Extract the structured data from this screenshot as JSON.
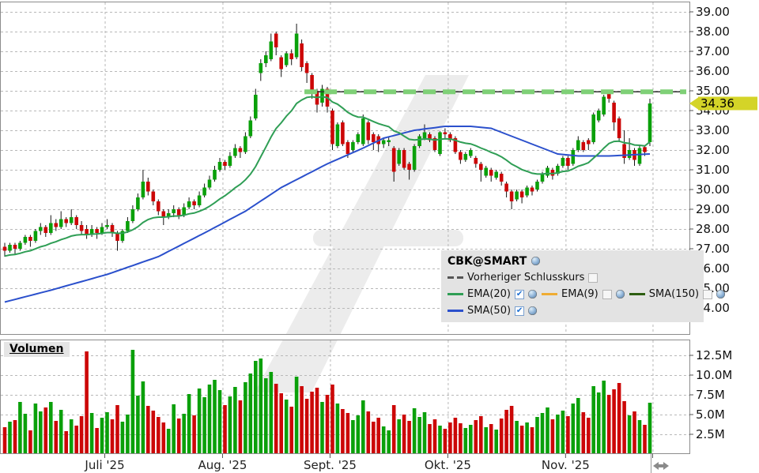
{
  "volume_label": "Volumen",
  "legend": {
    "title": "CBK@SMART",
    "items": [
      {
        "label": "Vorheriger Schlusskurs",
        "swatch": "dashed",
        "color": "#555555",
        "checked": false,
        "has_icon": false,
        "row": 2
      },
      {
        "label": "EMA(20)",
        "swatch": "line",
        "color": "#2f9e55",
        "checked": true,
        "has_icon": true,
        "row": 3
      },
      {
        "label": "EMA(9)",
        "swatch": "line",
        "color": "#efac33",
        "checked": false,
        "has_icon": true,
        "row": 3
      },
      {
        "label": "SMA(150)",
        "swatch": "line",
        "color": "#2d5e11",
        "checked": false,
        "has_icon": true,
        "row": 3
      },
      {
        "label": "SMA(50)",
        "swatch": "line",
        "color": "#2b50cc",
        "checked": true,
        "has_icon": true,
        "row": 4
      }
    ]
  },
  "price_axis": {
    "ticks": [
      {
        "label": "39.00",
        "value": 39
      },
      {
        "label": "38.00",
        "value": 38
      },
      {
        "label": "37.00",
        "value": 37
      },
      {
        "label": "36.00",
        "value": 36
      },
      {
        "label": "35.00",
        "value": 35
      },
      {
        "label": "34.00",
        "value": 34
      },
      {
        "label": "33.00",
        "value": 33
      },
      {
        "label": "32.00",
        "value": 32
      },
      {
        "label": "31.00",
        "value": 31
      },
      {
        "label": "30.00",
        "value": 30
      },
      {
        "label": "29.00",
        "value": 29
      },
      {
        "label": "28.00",
        "value": 28
      },
      {
        "label": "27.00",
        "value": 27
      },
      {
        "label": "26.00",
        "value": 26
      },
      {
        "label": "25.00",
        "value": 25
      },
      {
        "label": "24.00",
        "value": 24
      }
    ],
    "current_price": "34.36",
    "current_price_value": 34.36,
    "tag_color": "#d4d428"
  },
  "volume_axis": {
    "ticks": [
      {
        "label": "12.5M",
        "value": 12.5
      },
      {
        "label": "10.0M",
        "value": 10.0
      },
      {
        "label": "7.5M",
        "value": 7.5
      },
      {
        "label": "5.0M",
        "value": 5.0
      },
      {
        "label": "2.5M",
        "value": 2.5
      }
    ]
  },
  "x_axis": {
    "months": [
      {
        "label": "Juli '25",
        "start_index": 20
      },
      {
        "label": "Aug. '25",
        "start_index": 43
      },
      {
        "label": "Sept. '25",
        "start_index": 64
      },
      {
        "label": "Okt. '25",
        "start_index": 87
      },
      {
        "label": "Nov. '25",
        "start_index": 110
      },
      {
        "label": "",
        "start_index": 127
      }
    ]
  },
  "chart_data": {
    "type": "candlestick",
    "symbol": "CBK@SMART",
    "prev_close": 34.95,
    "prev_close_start_index": 59,
    "last_price": 34.36,
    "price_axis_range": [
      23.6,
      39.4
    ],
    "volume_axis_range": [
      0,
      14.3
    ],
    "grid": true,
    "colors": {
      "up": "#0aa00a",
      "down": "#cc0707",
      "ema20": "#2f9e55",
      "sma50": "#2b50cc",
      "prev_close": "#7fd077",
      "wick": "#151515"
    },
    "ema20": {
      "period": 20,
      "seed": 26.6
    },
    "sma50_anchor_points": [
      [
        0,
        24.3
      ],
      [
        9,
        24.9
      ],
      [
        20,
        25.7
      ],
      [
        30,
        26.6
      ],
      [
        39,
        27.8
      ],
      [
        47,
        28.9
      ],
      [
        54,
        30.1
      ],
      [
        63,
        31.3
      ],
      [
        70,
        32.1
      ],
      [
        74,
        32.6
      ],
      [
        80,
        33.0
      ],
      [
        86,
        33.2
      ],
      [
        91,
        33.2
      ],
      [
        95,
        33.1
      ],
      [
        100,
        32.6
      ],
      [
        105,
        32.1
      ],
      [
        108,
        31.8
      ],
      [
        112,
        31.7
      ],
      [
        118,
        31.7
      ],
      [
        126,
        31.8
      ]
    ],
    "candles_format": [
      "open",
      "high",
      "low",
      "close",
      "volume_millions"
    ],
    "candles": [
      [
        27.1,
        27.3,
        26.6,
        26.9,
        3.4
      ],
      [
        26.9,
        27.3,
        26.8,
        27.2,
        4.1
      ],
      [
        27.2,
        27.3,
        26.7,
        27.0,
        4.3
      ],
      [
        27.0,
        27.4,
        26.9,
        27.3,
        6.6
      ],
      [
        27.3,
        27.7,
        27.2,
        27.6,
        5.1
      ],
      [
        27.6,
        27.7,
        27.1,
        27.4,
        3.0
      ],
      [
        27.4,
        28.0,
        27.3,
        27.9,
        6.4
      ],
      [
        27.9,
        28.3,
        27.7,
        28.1,
        5.4
      ],
      [
        28.1,
        28.2,
        27.6,
        27.8,
        5.9
      ],
      [
        27.8,
        28.7,
        27.7,
        28.3,
        6.6
      ],
      [
        28.3,
        28.5,
        27.9,
        28.1,
        4.2
      ],
      [
        28.1,
        28.9,
        28.0,
        28.5,
        5.6
      ],
      [
        28.5,
        28.6,
        28.1,
        28.3,
        2.9
      ],
      [
        28.3,
        29.0,
        28.2,
        28.6,
        4.4
      ],
      [
        28.6,
        28.7,
        28.0,
        28.2,
        3.6
      ],
      [
        28.2,
        28.4,
        27.7,
        27.9,
        4.8
      ],
      [
        28.0,
        28.2,
        27.5,
        27.7,
        13.0
      ],
      [
        27.7,
        28.2,
        27.6,
        28.0,
        5.2
      ],
      [
        28.0,
        28.1,
        27.5,
        27.8,
        3.3
      ],
      [
        27.8,
        28.3,
        27.7,
        28.1,
        4.6
      ],
      [
        28.1,
        28.5,
        28.0,
        28.2,
        5.3
      ],
      [
        28.2,
        28.3,
        27.6,
        27.8,
        4.4
      ],
      [
        27.8,
        27.9,
        26.9,
        27.4,
        6.2
      ],
      [
        27.4,
        28.0,
        27.3,
        27.9,
        4.1
      ],
      [
        27.9,
        28.6,
        27.8,
        28.4,
        5.0
      ],
      [
        28.4,
        29.2,
        28.3,
        29.0,
        13.2
      ],
      [
        29.0,
        29.8,
        28.9,
        29.6,
        7.4
      ],
      [
        29.6,
        31.0,
        29.5,
        30.4,
        9.2
      ],
      [
        30.4,
        30.6,
        29.7,
        29.9,
        6.1
      ],
      [
        29.9,
        30.0,
        29.2,
        29.4,
        5.5
      ],
      [
        29.4,
        29.5,
        28.7,
        28.9,
        4.7
      ],
      [
        28.9,
        29.0,
        28.2,
        28.6,
        4.0
      ],
      [
        28.6,
        29.0,
        28.5,
        28.8,
        3.2
      ],
      [
        28.8,
        29.2,
        28.6,
        29.0,
        6.3
      ],
      [
        29.0,
        29.1,
        28.5,
        28.7,
        4.5
      ],
      [
        28.7,
        29.3,
        28.6,
        29.1,
        5.1
      ],
      [
        29.1,
        29.6,
        29.0,
        29.4,
        7.6
      ],
      [
        29.4,
        29.5,
        29.0,
        29.2,
        4.9
      ],
      [
        29.2,
        29.9,
        29.1,
        29.7,
        8.3
      ],
      [
        29.7,
        30.3,
        29.6,
        30.1,
        7.2
      ],
      [
        30.1,
        30.7,
        30.0,
        30.5,
        8.8
      ],
      [
        30.5,
        31.2,
        30.4,
        31.0,
        9.4
      ],
      [
        31.0,
        31.6,
        30.9,
        31.4,
        8.1
      ],
      [
        31.4,
        31.5,
        31.0,
        31.2,
        6.2
      ],
      [
        31.2,
        31.9,
        31.1,
        31.7,
        7.3
      ],
      [
        31.7,
        32.3,
        31.6,
        32.1,
        8.5
      ],
      [
        32.1,
        32.2,
        31.6,
        31.9,
        6.8
      ],
      [
        31.9,
        32.9,
        31.8,
        32.7,
        9.1
      ],
      [
        32.7,
        33.7,
        32.6,
        33.5,
        10.2
      ],
      [
        33.6,
        35.1,
        33.5,
        34.8,
        11.8
      ],
      [
        35.9,
        36.6,
        35.5,
        36.4,
        12.1
      ],
      [
        36.4,
        37.0,
        36.2,
        36.8,
        9.6
      ],
      [
        36.6,
        37.9,
        36.5,
        37.5,
        10.4
      ],
      [
        37.9,
        38.0,
        36.8,
        37.2,
        8.9
      ],
      [
        36.7,
        36.8,
        35.7,
        36.1,
        7.7
      ],
      [
        36.3,
        37.0,
        36.2,
        36.9,
        6.9
      ],
      [
        36.9,
        37.1,
        36.3,
        36.6,
        6.0
      ],
      [
        36.7,
        38.4,
        36.6,
        37.9,
        9.8
      ],
      [
        37.4,
        37.6,
        36.0,
        36.2,
        8.6
      ],
      [
        36.4,
        36.5,
        35.4,
        35.9,
        7.0
      ],
      [
        35.8,
        35.9,
        34.6,
        35.0,
        7.9
      ],
      [
        35.0,
        35.1,
        33.9,
        34.3,
        8.4
      ],
      [
        34.4,
        35.3,
        34.2,
        35.1,
        6.6
      ],
      [
        35.1,
        35.2,
        33.9,
        34.2,
        7.5
      ],
      [
        34.0,
        34.1,
        32.0,
        32.3,
        8.8
      ],
      [
        32.2,
        33.4,
        32.1,
        33.3,
        6.4
      ],
      [
        33.4,
        33.5,
        32.2,
        32.3,
        5.7
      ],
      [
        32.4,
        32.5,
        31.6,
        31.8,
        5.2
      ],
      [
        32.0,
        32.5,
        31.9,
        32.4,
        4.3
      ],
      [
        32.4,
        32.9,
        32.3,
        32.8,
        4.9
      ],
      [
        32.3,
        33.8,
        32.2,
        33.6,
        6.8
      ],
      [
        33.4,
        33.5,
        32.3,
        32.5,
        5.4
      ],
      [
        32.8,
        32.9,
        32.0,
        32.4,
        4.1
      ],
      [
        32.7,
        32.8,
        31.9,
        32.3,
        4.6
      ],
      [
        32.3,
        32.6,
        32.1,
        32.5,
        3.5
      ],
      [
        32.4,
        32.7,
        32.2,
        32.5,
        3.0
      ],
      [
        32.1,
        32.2,
        30.4,
        30.9,
        6.2
      ],
      [
        31.3,
        32.1,
        31.2,
        32.0,
        4.4
      ],
      [
        32.0,
        32.1,
        31.0,
        31.1,
        5.0
      ],
      [
        31.3,
        31.4,
        30.5,
        31.0,
        4.2
      ],
      [
        31.0,
        32.3,
        30.9,
        32.2,
        5.8
      ],
      [
        32.2,
        32.8,
        32.1,
        32.7,
        4.7
      ],
      [
        32.6,
        33.3,
        32.5,
        32.9,
        5.3
      ],
      [
        32.8,
        32.9,
        32.4,
        32.5,
        3.8
      ],
      [
        32.6,
        32.7,
        31.9,
        32.0,
        4.4
      ],
      [
        31.8,
        32.95,
        31.7,
        32.9,
        3.6
      ],
      [
        32.9,
        33.1,
        32.6,
        32.8,
        3.2
      ],
      [
        32.8,
        32.9,
        32.4,
        32.5,
        4.0
      ],
      [
        32.6,
        32.7,
        31.8,
        31.9,
        4.6
      ],
      [
        31.9,
        32.0,
        31.3,
        31.5,
        3.9
      ],
      [
        31.5,
        31.9,
        31.4,
        31.8,
        3.3
      ],
      [
        31.7,
        32.1,
        31.6,
        32.0,
        3.7
      ],
      [
        31.6,
        31.7,
        31.1,
        31.3,
        4.3
      ],
      [
        31.3,
        31.4,
        30.4,
        31.0,
        4.8
      ],
      [
        30.7,
        31.2,
        30.6,
        31.1,
        3.4
      ],
      [
        31.0,
        31.1,
        30.4,
        30.7,
        3.8
      ],
      [
        30.6,
        31.0,
        30.5,
        30.9,
        3.1
      ],
      [
        30.8,
        30.9,
        30.2,
        30.4,
        4.5
      ],
      [
        30.3,
        30.4,
        29.6,
        29.9,
        5.6
      ],
      [
        29.9,
        30.0,
        29.0,
        29.4,
        6.1
      ],
      [
        29.5,
        30.0,
        29.4,
        29.9,
        4.2
      ],
      [
        29.9,
        30.0,
        29.3,
        29.6,
        3.6
      ],
      [
        29.7,
        30.2,
        29.6,
        30.1,
        4.0
      ],
      [
        30.1,
        30.2,
        29.7,
        29.9,
        3.4
      ],
      [
        30.0,
        30.5,
        29.9,
        30.4,
        4.7
      ],
      [
        30.4,
        30.9,
        30.3,
        30.8,
        5.2
      ],
      [
        30.7,
        31.2,
        30.6,
        31.1,
        5.9
      ],
      [
        31.0,
        31.1,
        30.5,
        30.7,
        4.4
      ],
      [
        30.8,
        31.3,
        30.7,
        31.2,
        5.0
      ],
      [
        31.2,
        31.7,
        31.1,
        31.6,
        5.5
      ],
      [
        31.6,
        31.7,
        31.0,
        31.2,
        4.8
      ],
      [
        31.3,
        32.1,
        31.2,
        32.0,
        6.4
      ],
      [
        32.0,
        32.7,
        31.9,
        32.5,
        7.1
      ],
      [
        32.4,
        32.5,
        31.9,
        32.0,
        5.3
      ],
      [
        32.5,
        32.6,
        32.0,
        32.3,
        4.6
      ],
      [
        32.4,
        33.9,
        32.3,
        33.8,
        8.6
      ],
      [
        33.5,
        34.1,
        33.4,
        34.0,
        7.8
      ],
      [
        33.8,
        34.8,
        33.7,
        34.7,
        9.3
      ],
      [
        34.9,
        35.05,
        34.4,
        34.6,
        7.5
      ],
      [
        34.4,
        34.5,
        33.0,
        33.4,
        8.2
      ],
      [
        33.6,
        33.7,
        32.4,
        32.6,
        9.0
      ],
      [
        32.3,
        33.0,
        31.3,
        31.6,
        6.7
      ],
      [
        31.6,
        32.6,
        31.5,
        32.0,
        4.9
      ],
      [
        32.0,
        32.1,
        31.2,
        31.5,
        5.4
      ],
      [
        31.3,
        32.2,
        31.2,
        32.1,
        4.3
      ],
      [
        32.15,
        32.2,
        31.7,
        31.9,
        3.7
      ],
      [
        32.4,
        34.6,
        32.2,
        34.36,
        6.5
      ]
    ]
  }
}
